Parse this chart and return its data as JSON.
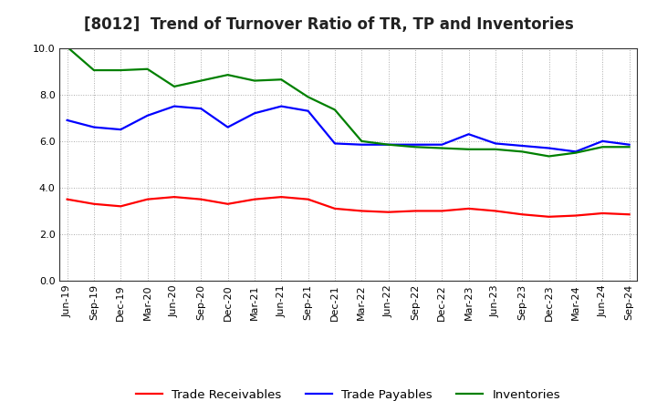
{
  "title": "[8012]  Trend of Turnover Ratio of TR, TP and Inventories",
  "ylim": [
    0.0,
    10.0
  ],
  "yticks": [
    0.0,
    2.0,
    4.0,
    6.0,
    8.0,
    10.0
  ],
  "x_labels": [
    "Jun-19",
    "Sep-19",
    "Dec-19",
    "Mar-20",
    "Jun-20",
    "Sep-20",
    "Dec-20",
    "Mar-21",
    "Jun-21",
    "Sep-21",
    "Dec-21",
    "Mar-22",
    "Jun-22",
    "Sep-22",
    "Dec-22",
    "Mar-23",
    "Jun-23",
    "Sep-23",
    "Dec-23",
    "Mar-24",
    "Jun-24",
    "Sep-24"
  ],
  "trade_receivables": [
    3.5,
    3.3,
    3.2,
    3.5,
    3.6,
    3.5,
    3.3,
    3.5,
    3.6,
    3.5,
    3.1,
    3.0,
    2.95,
    3.0,
    3.0,
    3.1,
    3.0,
    2.85,
    2.75,
    2.8,
    2.9,
    2.85
  ],
  "trade_payables": [
    6.9,
    6.6,
    6.5,
    7.1,
    7.5,
    7.4,
    6.6,
    7.2,
    7.5,
    7.3,
    5.9,
    5.85,
    5.85,
    5.85,
    5.85,
    6.3,
    5.9,
    5.8,
    5.7,
    5.55,
    6.0,
    5.85
  ],
  "inventories": [
    10.05,
    9.05,
    9.05,
    9.1,
    8.35,
    8.6,
    8.85,
    8.6,
    8.65,
    7.9,
    7.35,
    6.0,
    5.85,
    5.75,
    5.7,
    5.65,
    5.65,
    5.55,
    5.35,
    5.5,
    5.75,
    5.75
  ],
  "color_tr": "#ff0000",
  "color_tp": "#0000ff",
  "color_inv": "#008000",
  "legend_labels": [
    "Trade Receivables",
    "Trade Payables",
    "Inventories"
  ],
  "bg_color": "#ffffff",
  "plot_bg_color": "#ffffff",
  "grid_color": "#aaaaaa",
  "title_fontsize": 12,
  "legend_fontsize": 9.5,
  "tick_fontsize": 8,
  "line_width": 1.6
}
